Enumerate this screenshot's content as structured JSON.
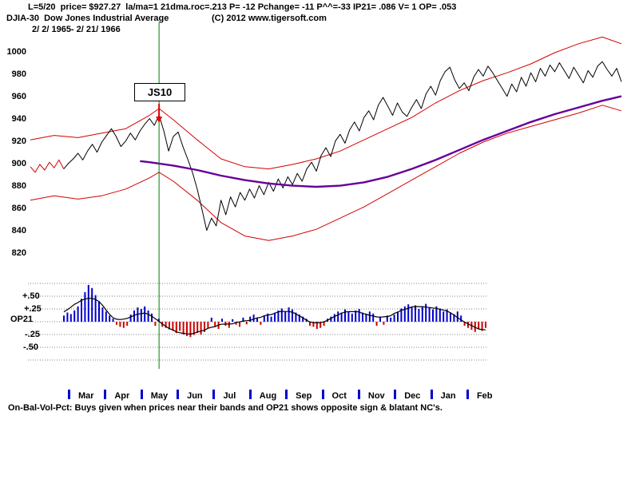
{
  "header": {
    "stats_line": "L=5/20  price= $927.27  la/ma=1 21dma.roc=.213 P= -12 Pchange= -11 P^^=-33 IP21= .086 V= 1 OP= .053",
    "symbol_line": "DJIA-30  Dow Jones Industrial Average",
    "copyright": "(C) 2012 www.tigersoft.com",
    "date_range": "2/ 2/ 1965- 2/ 21/ 1966"
  },
  "indicator": {
    "name": "OP21",
    "plus50": "+.50",
    "plus25": "+.25",
    "minus25": "-.25",
    "minus50": "-.50"
  },
  "footer": {
    "caption": "On-Bal-Vol-Pct: Buys given when prices near their bands and OP21 shows opposite sign & blatant NC's."
  },
  "colors": {
    "price": "#000000",
    "band": "#d40000",
    "moving_average": "#660099",
    "signal_line": "#008000",
    "arrow": "#dd0000",
    "hist_pos": "#0000cc",
    "hist_neg": "#cc0000",
    "grid": "#808080",
    "month_tick": "#0000cc"
  },
  "chart_data": {
    "type": "line",
    "title": "DJIA-30 Dow Jones Industrial Average",
    "date_range": [
      "2/2/1965",
      "2/21/1966"
    ],
    "ylim": [
      820,
      1000
    ],
    "y_axis_ticks": [
      1000,
      980,
      960,
      940,
      920,
      900,
      880,
      860,
      840,
      820
    ],
    "months": [
      "Mar",
      "Apr",
      "May",
      "Jun",
      "Jul",
      "Aug",
      "Sep",
      "Oct",
      "Nov",
      "Dec",
      "Jan",
      "Feb"
    ],
    "price": [
      898,
      893,
      900,
      895,
      902,
      897,
      904,
      896,
      901,
      905,
      910,
      904,
      912,
      918,
      911,
      920,
      926,
      932,
      925,
      916,
      921,
      928,
      922,
      930,
      936,
      941,
      935,
      944,
      930,
      912,
      925,
      929,
      916,
      905,
      893,
      878,
      860,
      841,
      852,
      845,
      868,
      855,
      871,
      862,
      875,
      868,
      878,
      870,
      881,
      873,
      884,
      876,
      887,
      879,
      889,
      882,
      892,
      885,
      896,
      902,
      894,
      908,
      915,
      907,
      921,
      927,
      919,
      931,
      938,
      930,
      942,
      948,
      940,
      953,
      960,
      952,
      944,
      955,
      947,
      943,
      951,
      958,
      950,
      963,
      970,
      962,
      975,
      983,
      987,
      976,
      968,
      973,
      966,
      978,
      985,
      979,
      988,
      982,
      975,
      968,
      961,
      972,
      965,
      978,
      970,
      982,
      974,
      986,
      979,
      989,
      983,
      991,
      984,
      977,
      987,
      980,
      973,
      984,
      978,
      988,
      992,
      985,
      979,
      986,
      974
    ],
    "price_red_segment_end": 7,
    "upper_band": [
      [
        0,
        922
      ],
      [
        5,
        926
      ],
      [
        10,
        924
      ],
      [
        15,
        928
      ],
      [
        20,
        932
      ],
      [
        25,
        944
      ],
      [
        27,
        950
      ],
      [
        30,
        940
      ],
      [
        35,
        922
      ],
      [
        40,
        905
      ],
      [
        45,
        898
      ],
      [
        50,
        896
      ],
      [
        55,
        900
      ],
      [
        60,
        905
      ],
      [
        65,
        912
      ],
      [
        70,
        922
      ],
      [
        75,
        932
      ],
      [
        80,
        942
      ],
      [
        85,
        955
      ],
      [
        90,
        966
      ],
      [
        95,
        975
      ],
      [
        100,
        982
      ],
      [
        105,
        990
      ],
      [
        110,
        1000
      ],
      [
        115,
        1008
      ],
      [
        120,
        1014
      ],
      [
        124,
        1008
      ]
    ],
    "lower_band": [
      [
        0,
        868
      ],
      [
        5,
        872
      ],
      [
        10,
        869
      ],
      [
        15,
        872
      ],
      [
        20,
        878
      ],
      [
        25,
        888
      ],
      [
        27,
        893
      ],
      [
        30,
        885
      ],
      [
        35,
        868
      ],
      [
        40,
        848
      ],
      [
        45,
        836
      ],
      [
        50,
        832
      ],
      [
        55,
        836
      ],
      [
        60,
        842
      ],
      [
        65,
        852
      ],
      [
        70,
        862
      ],
      [
        75,
        874
      ],
      [
        80,
        886
      ],
      [
        85,
        898
      ],
      [
        90,
        910
      ],
      [
        95,
        920
      ],
      [
        100,
        928
      ],
      [
        105,
        934
      ],
      [
        110,
        940
      ],
      [
        115,
        946
      ],
      [
        120,
        953
      ],
      [
        124,
        948
      ]
    ],
    "moving_average": [
      [
        23,
        903
      ],
      [
        25,
        902
      ],
      [
        30,
        899
      ],
      [
        35,
        895
      ],
      [
        40,
        890
      ],
      [
        45,
        886
      ],
      [
        50,
        883
      ],
      [
        55,
        881
      ],
      [
        60,
        880
      ],
      [
        65,
        881
      ],
      [
        70,
        884
      ],
      [
        75,
        889
      ],
      [
        80,
        896
      ],
      [
        85,
        904
      ],
      [
        90,
        913
      ],
      [
        95,
        922
      ],
      [
        100,
        930
      ],
      [
        105,
        938
      ],
      [
        110,
        945
      ],
      [
        115,
        951
      ],
      [
        120,
        957
      ],
      [
        124,
        961
      ]
    ],
    "signal": {
      "label": "JS10",
      "index": 27,
      "price": 944
    },
    "op21": {
      "name": "OP21",
      "ylim": [
        -0.5,
        0.5
      ],
      "scale_ticks": [
        0.5,
        0.25,
        -0.25,
        -0.5
      ],
      "values": [
        0.12,
        0.18,
        0.15,
        0.22,
        0.3,
        0.45,
        0.58,
        0.72,
        0.66,
        0.52,
        0.4,
        0.28,
        0.2,
        0.12,
        0.06,
        -0.06,
        -0.1,
        -0.12,
        -0.08,
        0.14,
        0.22,
        0.28,
        0.25,
        0.3,
        0.22,
        0.16,
        -0.08,
        0.06,
        -0.1,
        -0.12,
        -0.15,
        -0.18,
        -0.22,
        -0.18,
        -0.25,
        -0.28,
        -0.3,
        -0.26,
        -0.22,
        -0.25,
        -0.2,
        -0.12,
        0.08,
        -0.1,
        -0.14,
        0.06,
        -0.08,
        -0.12,
        0.05,
        -0.06,
        -0.1,
        0.08,
        -0.05,
        0.1,
        0.14,
        0.08,
        -0.06,
        0.12,
        0.16,
        0.1,
        0.18,
        0.22,
        0.26,
        0.2,
        0.28,
        0.24,
        0.18,
        0.14,
        0.1,
        0.06,
        -0.08,
        -0.1,
        -0.14,
        -0.12,
        -0.08,
        0.06,
        0.1,
        0.15,
        0.2,
        0.18,
        0.24,
        0.2,
        0.16,
        0.22,
        0.25,
        0.18,
        0.14,
        0.2,
        0.16,
        -0.08,
        0.1,
        -0.06,
        0.12,
        0.08,
        0.14,
        0.2,
        0.26,
        0.3,
        0.34,
        0.28,
        0.32,
        0.25,
        0.3,
        0.35,
        0.28,
        0.24,
        0.3,
        0.26,
        0.2,
        0.24,
        0.18,
        0.15,
        0.2,
        0.12,
        -0.08,
        -0.12,
        -0.16,
        -0.2,
        -0.14,
        -0.18,
        -0.12
      ]
    }
  }
}
